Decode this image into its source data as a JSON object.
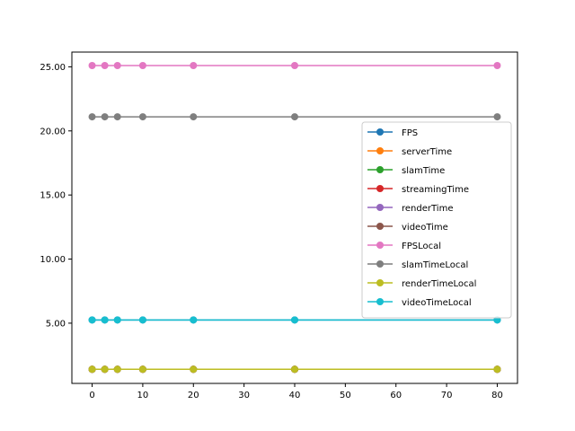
{
  "chart_data": {
    "type": "line",
    "title": "",
    "xlabel": "",
    "ylabel": "",
    "x": [
      0,
      2.5,
      5,
      10,
      20,
      40,
      80
    ],
    "xlim": [
      -4,
      84
    ],
    "ylim": [
      0.3,
      26.15
    ],
    "xticks": [
      0,
      10,
      20,
      30,
      40,
      50,
      60,
      70,
      80
    ],
    "yticks": [
      5,
      10,
      15,
      20,
      25
    ],
    "ytick_format": "2 decimals",
    "grid": false,
    "legend_position": "center-right",
    "series": [
      {
        "name": "FPS",
        "color": "#1f77b4",
        "values": [
          5.25,
          5.25,
          5.25,
          5.25,
          5.25,
          5.25,
          5.25
        ]
      },
      {
        "name": "serverTime",
        "color": "#ff7f0e",
        "values": [
          1.4,
          1.4,
          1.4,
          1.4,
          1.4,
          1.4,
          1.4
        ]
      },
      {
        "name": "slamTime",
        "color": "#2ca02c",
        "values": [
          1.4,
          1.4,
          1.4,
          1.4,
          1.4,
          1.4,
          1.4
        ]
      },
      {
        "name": "streamingTime",
        "color": "#d62728",
        "values": [
          1.4,
          1.4,
          1.4,
          1.4,
          1.4,
          1.4,
          1.4
        ]
      },
      {
        "name": "renderTime",
        "color": "#9467bd",
        "values": [
          1.4,
          1.4,
          1.4,
          1.4,
          1.4,
          1.4,
          1.4
        ]
      },
      {
        "name": "videoTime",
        "color": "#8c564b",
        "values": [
          1.4,
          1.4,
          1.4,
          1.4,
          1.4,
          1.4,
          1.4
        ]
      },
      {
        "name": "FPSLocal",
        "color": "#e377c2",
        "values": [
          25.1,
          25.1,
          25.1,
          25.1,
          25.1,
          25.1,
          25.1
        ]
      },
      {
        "name": "slamTimeLocal",
        "color": "#7f7f7f",
        "values": [
          21.1,
          21.1,
          21.1,
          21.1,
          21.1,
          21.1,
          21.1
        ]
      },
      {
        "name": "renderTimeLocal",
        "color": "#bcbd22",
        "values": [
          1.4,
          1.4,
          1.4,
          1.4,
          1.4,
          1.4,
          1.4
        ]
      },
      {
        "name": "videoTimeLocal",
        "color": "#17becf",
        "values": [
          5.25,
          5.25,
          5.25,
          5.25,
          5.25,
          5.25,
          5.25
        ]
      }
    ]
  }
}
